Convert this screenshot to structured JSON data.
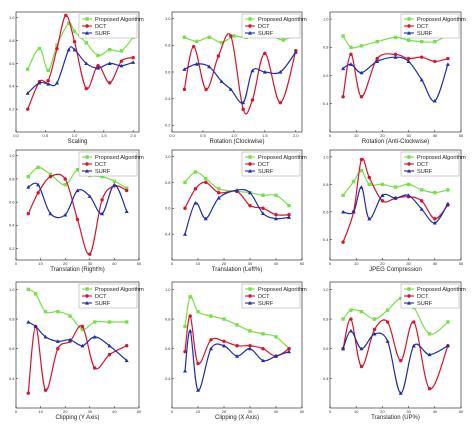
{
  "colors": {
    "proposed": "#76e04a",
    "dct": "#d8142c",
    "surf": "#1c2ea8",
    "axis": "#111111",
    "legend_border": "#888888"
  },
  "legend_labels": [
    "Proposed Algorithm",
    "DCT",
    "SURF"
  ],
  "chart_data": [
    {
      "type": "line",
      "xlabel": "Scaling",
      "ylabel": "",
      "xlim": [
        0,
        2.1
      ],
      "ylim": [
        0,
        1.05
      ],
      "xticks": [
        "0.0",
        "0.5",
        "1.0",
        "1.5",
        "2.0"
      ],
      "xtick_values": [
        0,
        0.5,
        1,
        1.5,
        2
      ],
      "yticks": [
        "0.2",
        "0.4",
        "0.6",
        "0.8",
        "1.0"
      ],
      "ytick_values": [
        0.2,
        0.4,
        0.6,
        0.8,
        1.0
      ],
      "legend": "top-right",
      "grid": false,
      "series": [
        {
          "name": "Proposed Algorithm",
          "color_key": "proposed",
          "marker": "square",
          "x": [
            0.2,
            0.4,
            0.55,
            0.7,
            0.9,
            1.0,
            1.2,
            1.4,
            1.6,
            1.8,
            2.0
          ],
          "y": [
            0.55,
            0.73,
            0.54,
            0.76,
            0.95,
            0.88,
            0.78,
            0.67,
            0.72,
            0.71,
            0.83
          ]
        },
        {
          "name": "DCT",
          "color_key": "dct",
          "marker": "circle",
          "x": [
            0.2,
            0.4,
            0.55,
            0.7,
            0.85,
            1.0,
            1.2,
            1.4,
            1.6,
            1.8,
            2.0
          ],
          "y": [
            0.2,
            0.44,
            0.45,
            0.73,
            1.02,
            0.79,
            0.38,
            0.58,
            0.43,
            0.62,
            0.65
          ]
        },
        {
          "name": "SURF",
          "color_key": "surf",
          "marker": "triangle",
          "x": [
            0.2,
            0.4,
            0.55,
            0.7,
            0.9,
            1.0,
            1.2,
            1.4,
            1.6,
            1.8,
            2.0
          ],
          "y": [
            0.34,
            0.43,
            0.42,
            0.43,
            0.72,
            0.72,
            0.6,
            0.56,
            0.6,
            0.58,
            0.61
          ]
        }
      ]
    },
    {
      "type": "line",
      "xlabel": "Rotation (Clockwise)",
      "ylabel": "",
      "xlim": [
        0,
        2.1
      ],
      "ylim": [
        0.15,
        1.05
      ],
      "xticks": [
        "0.0",
        "0.5",
        "1.0",
        "1.5",
        "2.0"
      ],
      "xtick_values": [
        0,
        0.5,
        1,
        1.5,
        2
      ],
      "yticks": [
        "0.2",
        "0.4",
        "0.6",
        "0.8",
        "1.0"
      ],
      "ytick_values": [
        0.2,
        0.4,
        0.6,
        0.8,
        1.0
      ],
      "legend": "top-right",
      "grid": false,
      "series": [
        {
          "name": "Proposed Algorithm",
          "color_key": "proposed",
          "marker": "square",
          "x": [
            0.2,
            0.4,
            0.6,
            0.8,
            1.0,
            1.2,
            1.4,
            1.6,
            1.8,
            2.0
          ],
          "y": [
            0.86,
            0.83,
            0.86,
            0.82,
            0.87,
            0.86,
            0.93,
            0.88,
            0.84,
            0.89
          ]
        },
        {
          "name": "DCT",
          "color_key": "dct",
          "marker": "circle",
          "x": [
            0.2,
            0.35,
            0.55,
            0.75,
            0.95,
            1.15,
            1.3,
            1.5,
            1.75,
            2.0
          ],
          "y": [
            0.47,
            0.79,
            0.47,
            0.72,
            0.87,
            0.32,
            0.39,
            0.74,
            0.37,
            0.76
          ]
        },
        {
          "name": "SURF",
          "color_key": "surf",
          "marker": "triangle",
          "x": [
            0.2,
            0.4,
            0.6,
            0.8,
            0.95,
            1.15,
            1.3,
            1.5,
            1.75,
            2.0
          ],
          "y": [
            0.62,
            0.66,
            0.64,
            0.53,
            0.47,
            0.37,
            0.61,
            0.6,
            0.6,
            0.75
          ]
        }
      ]
    },
    {
      "type": "line",
      "xlabel": "Rotation (Anti-Clockwise)",
      "ylabel": "",
      "xlim": [
        0,
        50
      ],
      "ylim": [
        0.2,
        1.05
      ],
      "xticks": [
        "0",
        "10",
        "20",
        "30",
        "40",
        "50"
      ],
      "xtick_values": [
        0,
        10,
        20,
        30,
        40,
        50
      ],
      "yticks": [
        "0.4",
        "0.6",
        "0.8",
        "1.0"
      ],
      "ytick_values": [
        0.4,
        0.6,
        0.8,
        1.0
      ],
      "legend": "top-right",
      "grid": false,
      "series": [
        {
          "name": "Proposed Algorithm",
          "color_key": "proposed",
          "marker": "square",
          "x": [
            5,
            8,
            12,
            18,
            25,
            30,
            35,
            40,
            45
          ],
          "y": [
            0.88,
            0.8,
            0.81,
            0.84,
            0.87,
            0.85,
            0.84,
            0.84,
            0.89
          ]
        },
        {
          "name": "DCT",
          "color_key": "dct",
          "marker": "circle",
          "x": [
            5,
            8,
            12,
            18,
            25,
            30,
            35,
            40,
            45
          ],
          "y": [
            0.45,
            0.75,
            0.45,
            0.72,
            0.75,
            0.72,
            0.73,
            0.7,
            0.72
          ]
        },
        {
          "name": "SURF",
          "color_key": "surf",
          "marker": "triangle",
          "x": [
            5,
            8,
            12,
            18,
            25,
            30,
            35,
            40,
            45
          ],
          "y": [
            0.65,
            0.68,
            0.62,
            0.7,
            0.73,
            0.7,
            0.57,
            0.42,
            0.68
          ]
        }
      ]
    },
    {
      "type": "line",
      "xlabel": "Translation (Right%)",
      "ylabel": "",
      "xlim": [
        0,
        50
      ],
      "ylim": [
        0.1,
        1.05
      ],
      "xticks": [
        "0",
        "10",
        "20",
        "30",
        "40",
        "50"
      ],
      "xtick_values": [
        0,
        10,
        20,
        30,
        40,
        50
      ],
      "yticks": [
        "0.2",
        "0.4",
        "0.6",
        "0.8",
        "1.0"
      ],
      "ytick_values": [
        0.2,
        0.4,
        0.6,
        0.8,
        1.0
      ],
      "legend": "top-right",
      "grid": false,
      "series": [
        {
          "name": "Proposed Algorithm",
          "color_key": "proposed",
          "marker": "square",
          "x": [
            5,
            9,
            14,
            20,
            25,
            30,
            35,
            40,
            45
          ],
          "y": [
            0.82,
            0.9,
            0.84,
            0.75,
            0.88,
            0.83,
            0.82,
            0.78,
            0.72
          ]
        },
        {
          "name": "DCT",
          "color_key": "dct",
          "marker": "circle",
          "x": [
            5,
            9,
            14,
            20,
            25,
            30,
            35,
            40,
            45
          ],
          "y": [
            0.5,
            0.68,
            0.82,
            0.8,
            0.45,
            0.15,
            0.62,
            0.74,
            0.7
          ]
        },
        {
          "name": "SURF",
          "color_key": "surf",
          "marker": "triangle",
          "x": [
            5,
            9,
            14,
            20,
            25,
            30,
            35,
            40,
            45
          ],
          "y": [
            0.73,
            0.75,
            0.5,
            0.49,
            0.7,
            0.65,
            0.5,
            0.75,
            0.52
          ]
        }
      ]
    },
    {
      "type": "line",
      "xlabel": "Translation (Left%)",
      "ylabel": "",
      "xlim": [
        0,
        50
      ],
      "ylim": [
        0.2,
        1.05
      ],
      "xticks": [
        "0",
        "10",
        "20",
        "30",
        "40",
        "50"
      ],
      "xtick_values": [
        0,
        10,
        20,
        30,
        40,
        50
      ],
      "yticks": [
        "0.4",
        "0.6",
        "0.8",
        "1.0"
      ],
      "ytick_values": [
        0.4,
        0.6,
        0.8,
        1.0
      ],
      "legend": "top-right",
      "grid": false,
      "series": [
        {
          "name": "Proposed Algorithm",
          "color_key": "proposed",
          "marker": "square",
          "x": [
            5,
            9,
            13,
            18,
            25,
            30,
            35,
            40,
            45
          ],
          "y": [
            0.8,
            0.88,
            0.83,
            0.75,
            0.73,
            0.72,
            0.7,
            0.7,
            0.62
          ]
        },
        {
          "name": "DCT",
          "color_key": "dct",
          "marker": "circle",
          "x": [
            5,
            9,
            13,
            18,
            25,
            30,
            35,
            40,
            45
          ],
          "y": [
            0.6,
            0.75,
            0.8,
            0.72,
            0.73,
            0.62,
            0.6,
            0.55,
            0.55
          ]
        },
        {
          "name": "SURF",
          "color_key": "surf",
          "marker": "triangle",
          "x": [
            5,
            9,
            13,
            18,
            25,
            30,
            35,
            40,
            45
          ],
          "y": [
            0.4,
            0.64,
            0.52,
            0.68,
            0.74,
            0.72,
            0.56,
            0.52,
            0.53
          ]
        }
      ]
    },
    {
      "type": "line",
      "xlabel": "JPEG Compression",
      "ylabel": "",
      "xlim": [
        0,
        50
      ],
      "ylim": [
        0.25,
        1.05
      ],
      "xticks": [
        "0",
        "10",
        "20",
        "30",
        "40",
        "50"
      ],
      "xtick_values": [
        0,
        10,
        20,
        30,
        40,
        50
      ],
      "yticks": [
        "0.4",
        "0.6",
        "0.8",
        "1.0"
      ],
      "ytick_values": [
        0.4,
        0.6,
        0.8,
        1.0
      ],
      "legend": "top-right",
      "grid": false,
      "series": [
        {
          "name": "Proposed Algorithm",
          "color_key": "proposed",
          "marker": "square",
          "x": [
            5,
            9,
            12,
            15,
            20,
            25,
            30,
            35,
            40,
            45
          ],
          "y": [
            0.72,
            0.82,
            0.9,
            0.8,
            0.8,
            0.78,
            0.8,
            0.76,
            0.74,
            0.76
          ]
        },
        {
          "name": "DCT",
          "color_key": "dct",
          "marker": "circle",
          "x": [
            5,
            9,
            12,
            15,
            20,
            25,
            30,
            35,
            40,
            45
          ],
          "y": [
            0.38,
            0.6,
            0.98,
            0.85,
            0.68,
            0.7,
            0.71,
            0.68,
            0.55,
            0.65
          ]
        },
        {
          "name": "SURF",
          "color_key": "surf",
          "marker": "triangle",
          "x": [
            5,
            9,
            12,
            15,
            20,
            25,
            30,
            35,
            40,
            45
          ],
          "y": [
            0.6,
            0.6,
            0.78,
            0.55,
            0.72,
            0.7,
            0.72,
            0.62,
            0.52,
            0.66
          ]
        }
      ]
    },
    {
      "type": "line",
      "xlabel": "Clipping (Y Axis)",
      "ylabel": "",
      "xlim": [
        0,
        50
      ],
      "ylim": [
        0.2,
        1.05
      ],
      "xticks": [
        "0",
        "10",
        "20",
        "30",
        "40",
        "50"
      ],
      "xtick_values": [
        0,
        10,
        20,
        30,
        40,
        50
      ],
      "yticks": [
        "0.4",
        "0.6",
        "0.8",
        "1.0"
      ],
      "ytick_values": [
        0.4,
        0.6,
        0.8,
        1.0
      ],
      "legend": "top-right",
      "grid": false,
      "series": [
        {
          "name": "Proposed Algorithm",
          "color_key": "proposed",
          "marker": "square",
          "x": [
            5,
            8,
            12,
            17,
            22,
            27,
            32,
            38,
            45
          ],
          "y": [
            1.0,
            0.97,
            0.85,
            0.85,
            0.82,
            0.73,
            0.78,
            0.78,
            0.78
          ]
        },
        {
          "name": "DCT",
          "color_key": "dct",
          "marker": "circle",
          "x": [
            5,
            8,
            12,
            17,
            22,
            27,
            32,
            38,
            45
          ],
          "y": [
            0.3,
            0.75,
            0.32,
            0.6,
            0.65,
            0.75,
            0.47,
            0.56,
            0.62
          ]
        },
        {
          "name": "SURF",
          "color_key": "surf",
          "marker": "triangle",
          "x": [
            5,
            8,
            12,
            17,
            22,
            27,
            32,
            38,
            45
          ],
          "y": [
            0.78,
            0.75,
            0.68,
            0.65,
            0.66,
            0.62,
            0.68,
            0.62,
            0.52
          ]
        }
      ]
    },
    {
      "type": "line",
      "xlabel": "Clipping (X Axis)",
      "ylabel": "",
      "xlim": [
        0,
        50
      ],
      "ylim": [
        0.2,
        1.05
      ],
      "xticks": [
        "0",
        "10",
        "20",
        "30",
        "40",
        "50"
      ],
      "xtick_values": [
        0,
        10,
        20,
        30,
        40,
        50
      ],
      "yticks": [
        "0.4",
        "0.6",
        "0.8",
        "1.0"
      ],
      "ytick_values": [
        0.4,
        0.6,
        0.8,
        1.0
      ],
      "legend": "top-right",
      "grid": false,
      "series": [
        {
          "name": "Proposed Algorithm",
          "color_key": "proposed",
          "marker": "square",
          "x": [
            5,
            7,
            10,
            15,
            20,
            25,
            30,
            35,
            40,
            45
          ],
          "y": [
            0.75,
            0.95,
            0.85,
            0.82,
            0.8,
            0.76,
            0.72,
            0.7,
            0.68,
            0.6
          ]
        },
        {
          "name": "DCT",
          "color_key": "dct",
          "marker": "circle",
          "x": [
            5,
            7,
            10,
            15,
            20,
            25,
            30,
            35,
            40,
            45
          ],
          "y": [
            0.58,
            0.82,
            0.5,
            0.66,
            0.65,
            0.62,
            0.62,
            0.6,
            0.55,
            0.6
          ]
        },
        {
          "name": "SURF",
          "color_key": "surf",
          "marker": "triangle",
          "x": [
            5,
            7,
            10,
            15,
            20,
            25,
            30,
            35,
            40,
            45
          ],
          "y": [
            0.45,
            0.72,
            0.32,
            0.6,
            0.62,
            0.55,
            0.6,
            0.52,
            0.55,
            0.58
          ]
        }
      ]
    },
    {
      "type": "line",
      "xlabel": "Translation (UP%)",
      "ylabel": "",
      "xlim": [
        0,
        50
      ],
      "ylim": [
        0.2,
        1.05
      ],
      "xticks": [
        "0",
        "10",
        "20",
        "30",
        "40",
        "50"
      ],
      "xtick_values": [
        0,
        10,
        20,
        30,
        40,
        50
      ],
      "yticks": [
        "0.4",
        "0.6",
        "0.8",
        "1.0"
      ],
      "ytick_values": [
        0.4,
        0.6,
        0.8,
        1.0
      ],
      "legend": "top-right",
      "grid": false,
      "series": [
        {
          "name": "Proposed Algorithm",
          "color_key": "proposed",
          "marker": "square",
          "x": [
            5,
            8,
            12,
            17,
            22,
            27,
            32,
            38,
            45
          ],
          "y": [
            0.8,
            0.86,
            0.85,
            0.8,
            0.86,
            0.94,
            0.88,
            0.7,
            0.78
          ]
        },
        {
          "name": "DCT",
          "color_key": "dct",
          "marker": "circle",
          "x": [
            5,
            8,
            12,
            17,
            22,
            27,
            32,
            38,
            45
          ],
          "y": [
            0.6,
            0.8,
            0.48,
            0.73,
            0.78,
            0.52,
            0.78,
            0.33,
            0.62
          ]
        },
        {
          "name": "SURF",
          "color_key": "surf",
          "marker": "triangle",
          "x": [
            5,
            8,
            12,
            17,
            22,
            27,
            32,
            38,
            45
          ],
          "y": [
            0.6,
            0.72,
            0.6,
            0.7,
            0.65,
            0.3,
            0.62,
            0.56,
            0.62
          ]
        }
      ]
    }
  ]
}
